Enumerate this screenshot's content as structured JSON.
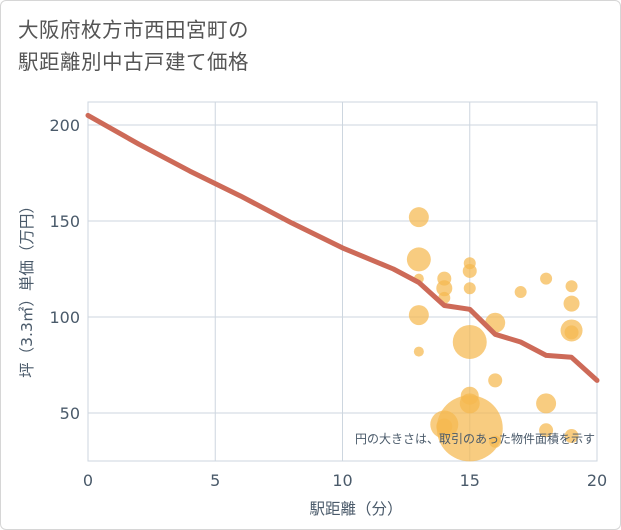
{
  "chart_data": {
    "type": "scatter",
    "title_line1": "大阪府枚方市西田宮町の",
    "title_line2": "駅距離別中古戸建て価格",
    "xlabel": "駅距離（分）",
    "ylabel": "坪（3.3㎡）単価（万円）",
    "xlim": [
      0,
      20
    ],
    "ylim": [
      25,
      212
    ],
    "xticks": [
      0,
      5,
      10,
      15,
      20
    ],
    "yticks": [
      50,
      100,
      150,
      200
    ],
    "grid": true,
    "annotation": "円の大きさは、取引のあった物件面積を示す",
    "colors": {
      "bubble": "#f5b94f",
      "line": "#cd6a58",
      "grid": "#cdd6df"
    },
    "line_series": {
      "name": "trend",
      "x": [
        0,
        2,
        4,
        6,
        8,
        10,
        12,
        13,
        14,
        15,
        16,
        17,
        18,
        19,
        20
      ],
      "y": [
        205,
        190,
        176,
        163,
        149,
        136,
        125,
        118,
        106,
        104,
        91,
        87,
        80,
        79,
        67
      ]
    },
    "scatter_series": {
      "name": "transactions",
      "points": [
        {
          "x": 13,
          "y": 152,
          "size": 10
        },
        {
          "x": 13,
          "y": 130,
          "size": 12
        },
        {
          "x": 13,
          "y": 120,
          "size": 5
        },
        {
          "x": 13,
          "y": 101,
          "size": 10
        },
        {
          "x": 13,
          "y": 82,
          "size": 5
        },
        {
          "x": 14,
          "y": 120,
          "size": 7
        },
        {
          "x": 14,
          "y": 115,
          "size": 8
        },
        {
          "x": 14,
          "y": 110,
          "size": 6
        },
        {
          "x": 14,
          "y": 44,
          "size": 14
        },
        {
          "x": 14,
          "y": 43,
          "size": 8
        },
        {
          "x": 15,
          "y": 128,
          "size": 6
        },
        {
          "x": 15,
          "y": 124,
          "size": 7
        },
        {
          "x": 15,
          "y": 115,
          "size": 6
        },
        {
          "x": 15,
          "y": 87,
          "size": 17
        },
        {
          "x": 15,
          "y": 59,
          "size": 9
        },
        {
          "x": 15,
          "y": 55,
          "size": 10
        },
        {
          "x": 15,
          "y": 42,
          "size": 33
        },
        {
          "x": 16,
          "y": 97,
          "size": 10
        },
        {
          "x": 16,
          "y": 67,
          "size": 7
        },
        {
          "x": 16,
          "y": 35,
          "size": 6
        },
        {
          "x": 17,
          "y": 113,
          "size": 6
        },
        {
          "x": 18,
          "y": 120,
          "size": 6
        },
        {
          "x": 18,
          "y": 55,
          "size": 10
        },
        {
          "x": 18,
          "y": 41,
          "size": 7
        },
        {
          "x": 19,
          "y": 116,
          "size": 6
        },
        {
          "x": 19,
          "y": 107,
          "size": 8
        },
        {
          "x": 19,
          "y": 93,
          "size": 11
        },
        {
          "x": 19,
          "y": 92,
          "size": 7
        },
        {
          "x": 19,
          "y": 38,
          "size": 7
        }
      ]
    }
  }
}
